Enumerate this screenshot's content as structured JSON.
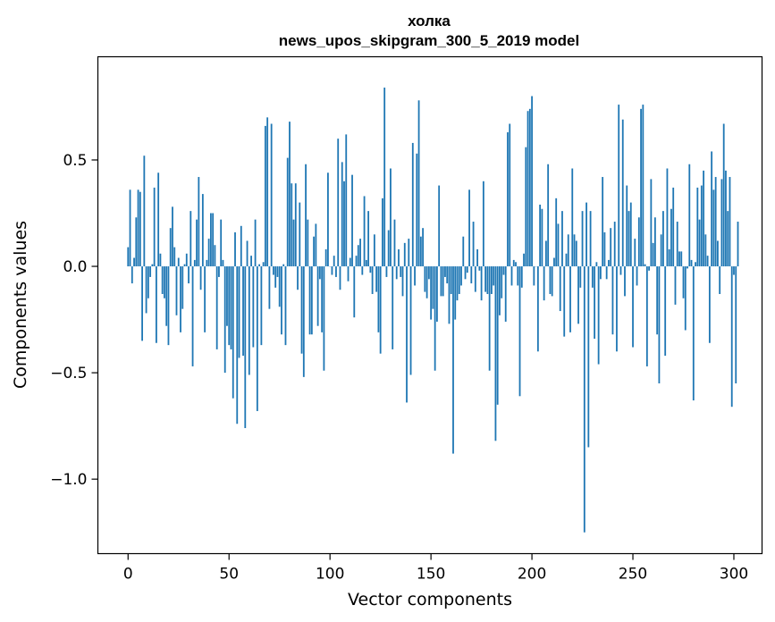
{
  "chart_data": {
    "type": "bar",
    "title": "холка",
    "subtitle": "news_upos_skipgram_300_5_2019 model",
    "xlabel": "Vector components",
    "ylabel": "Components values",
    "xlim": [
      -14.95,
      313.95
    ],
    "ylim": [
      -1.35,
      0.985
    ],
    "x_ticks": [
      0,
      50,
      100,
      150,
      200,
      250,
      300
    ],
    "x_tick_labels": [
      "0",
      "50",
      "100",
      "150",
      "200",
      "250",
      "300"
    ],
    "y_ticks": [
      -1.0,
      -0.5,
      0.0,
      0.5
    ],
    "y_tick_labels": [
      "−1.0",
      "−0.5",
      "0.0",
      "0.5"
    ],
    "bar_color": "#1f77b4",
    "values": [
      0.09,
      0.36,
      -0.08,
      0.04,
      0.23,
      0.36,
      0.35,
      -0.35,
      0.52,
      -0.22,
      -0.15,
      -0.05,
      0.01,
      0.37,
      -0.36,
      0.44,
      0.06,
      -0.13,
      -0.15,
      -0.28,
      -0.37,
      0.18,
      0.28,
      0.09,
      -0.23,
      0.04,
      -0.31,
      -0.2,
      0.01,
      0.06,
      -0.08,
      0.26,
      -0.47,
      0.03,
      0.22,
      0.42,
      -0.11,
      0.34,
      -0.31,
      0.03,
      0.13,
      0.25,
      0.25,
      0.1,
      -0.39,
      -0.05,
      0.22,
      0.03,
      -0.5,
      -0.28,
      -0.37,
      -0.39,
      -0.62,
      0.16,
      -0.74,
      -0.43,
      0.19,
      -0.42,
      -0.76,
      0.12,
      -0.51,
      0.05,
      -0.38,
      0.22,
      -0.68,
      0.01,
      -0.37,
      0.02,
      0.66,
      0.7,
      -0.2,
      0.67,
      -0.04,
      -0.1,
      -0.05,
      -0.19,
      -0.32,
      0.01,
      -0.37,
      0.51,
      0.68,
      0.39,
      0.22,
      0.39,
      -0.11,
      0.3,
      -0.41,
      -0.52,
      0.48,
      0.22,
      -0.32,
      -0.32,
      0.14,
      0.2,
      -0.28,
      -0.06,
      -0.31,
      -0.49,
      0.08,
      0.44,
      0.0,
      -0.04,
      0.05,
      -0.05,
      0.6,
      -0.11,
      0.49,
      0.4,
      0.62,
      -0.07,
      0.04,
      0.43,
      -0.24,
      0.05,
      0.1,
      0.13,
      -0.04,
      0.33,
      0.03,
      0.26,
      -0.03,
      -0.13,
      0.15,
      -0.12,
      -0.31,
      -0.41,
      0.32,
      0.84,
      -0.05,
      0.17,
      0.46,
      -0.39,
      0.22,
      -0.06,
      0.08,
      -0.05,
      -0.14,
      0.11,
      -0.64,
      0.13,
      -0.51,
      0.58,
      -0.09,
      0.53,
      0.78,
      0.14,
      0.18,
      -0.12,
      -0.15,
      -0.06,
      -0.25,
      -0.2,
      -0.49,
      -0.26,
      0.38,
      -0.14,
      -0.14,
      -0.05,
      -0.08,
      -0.27,
      -0.13,
      -0.88,
      -0.25,
      -0.16,
      -0.13,
      -0.09,
      0.14,
      -0.06,
      -0.03,
      0.36,
      -0.08,
      0.21,
      -0.12,
      0.08,
      -0.02,
      -0.16,
      0.4,
      -0.12,
      -0.13,
      -0.49,
      -0.13,
      -0.09,
      -0.82,
      -0.65,
      -0.23,
      -0.15,
      -0.04,
      -0.26,
      0.63,
      0.67,
      -0.09,
      0.03,
      0.02,
      -0.09,
      -0.61,
      -0.1,
      0.06,
      0.56,
      0.73,
      0.74,
      0.8,
      -0.09,
      0.0,
      -0.4,
      0.29,
      0.27,
      -0.16,
      0.12,
      0.48,
      -0.13,
      -0.14,
      0.04,
      0.32,
      0.2,
      -0.21,
      0.26,
      -0.33,
      0.06,
      0.15,
      -0.31,
      0.46,
      0.15,
      0.12,
      -0.27,
      -0.1,
      0.26,
      -1.25,
      0.3,
      -0.85,
      0.26,
      -0.1,
      -0.34,
      0.02,
      -0.46,
      -0.06,
      0.42,
      0.16,
      -0.06,
      0.03,
      0.18,
      -0.32,
      0.21,
      -0.4,
      0.76,
      -0.04,
      0.69,
      -0.14,
      0.38,
      0.26,
      0.3,
      -0.38,
      0.13,
      -0.09,
      0.23,
      0.74,
      0.76,
      0.01,
      -0.47,
      -0.02,
      0.41,
      0.11,
      0.23,
      -0.32,
      -0.55,
      0.15,
      0.26,
      -0.42,
      0.46,
      0.08,
      0.27,
      0.37,
      -0.18,
      0.21,
      0.07,
      0.07,
      -0.15,
      -0.3,
      -0.01,
      0.48,
      0.03,
      -0.63,
      0.02,
      0.37,
      0.22,
      0.38,
      0.45,
      0.15,
      0.05,
      -0.36,
      0.54,
      0.36,
      0.42,
      0.12,
      -0.13,
      0.41,
      0.67,
      0.45,
      0.26,
      0.42,
      -0.66,
      -0.04,
      -0.55,
      0.21
    ]
  }
}
